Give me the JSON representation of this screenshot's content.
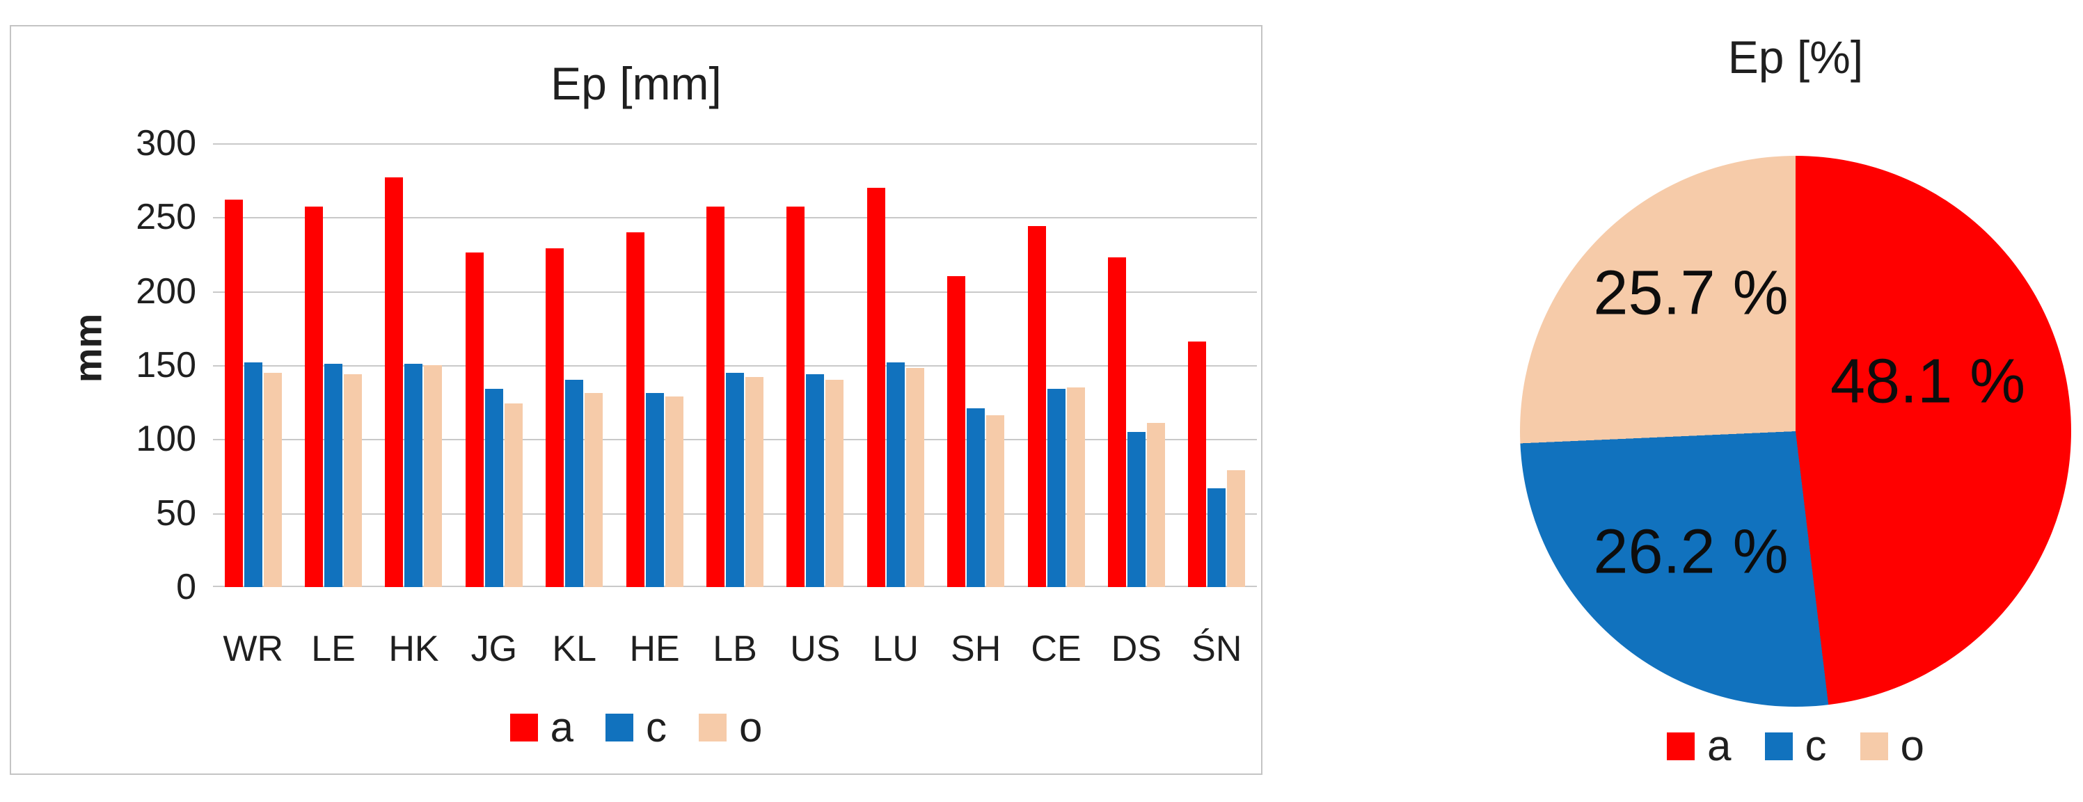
{
  "chart_data": [
    {
      "type": "bar",
      "title": "Ep [mm]",
      "ylabel": "mm",
      "xlabel": "",
      "ylim": [
        0,
        300
      ],
      "yticks": [
        0,
        50,
        100,
        150,
        200,
        250,
        300
      ],
      "grid": true,
      "legend_position": "bottom",
      "categories": [
        "WR",
        "LE",
        "HK",
        "JG",
        "KL",
        "HE",
        "LB",
        "US",
        "LU",
        "SH",
        "CE",
        "DS",
        "ŚN"
      ],
      "series": [
        {
          "name": "a",
          "color": "#ff0000",
          "values": [
            262,
            257,
            277,
            226,
            229,
            240,
            257,
            257,
            270,
            210,
            244,
            223,
            166
          ]
        },
        {
          "name": "c",
          "color": "#1172be",
          "values": [
            152,
            151,
            151,
            134,
            140,
            131,
            145,
            144,
            152,
            121,
            134,
            105,
            67
          ]
        },
        {
          "name": "o",
          "color": "#f6cba9",
          "values": [
            145,
            144,
            150,
            124,
            131,
            129,
            142,
            140,
            148,
            116,
            135,
            111,
            79
          ]
        }
      ]
    },
    {
      "type": "pie",
      "title": "Ep [%]",
      "start_angle_deg": 0,
      "direction": "clockwise",
      "legend_position": "bottom",
      "slices": [
        {
          "name": "a",
          "value": 48.1,
          "label": "48.1 %",
          "color": "#ff0000",
          "label_pos": {
            "x": 74,
            "y": 41
          }
        },
        {
          "name": "c",
          "value": 26.2,
          "label": "26.2 %",
          "color": "#1172be",
          "label_pos": {
            "x": 31,
            "y": 72
          }
        },
        {
          "name": "o",
          "value": 25.7,
          "label": "25.7 %",
          "color": "#f6cba9",
          "label_pos": {
            "x": 31,
            "y": 25
          }
        }
      ]
    }
  ]
}
